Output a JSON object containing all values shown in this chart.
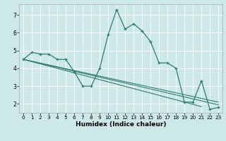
{
  "title": "",
  "xlabel": "Humidex (Indice chaleur)",
  "bg_color": "#cce8e8",
  "grid_color": "#ffffff",
  "line_color": "#2e7d6e",
  "xlim": [
    -0.5,
    23.5
  ],
  "ylim": [
    1.5,
    7.6
  ],
  "yticks": [
    2,
    3,
    4,
    5,
    6,
    7
  ],
  "xticks": [
    0,
    1,
    2,
    3,
    4,
    5,
    6,
    7,
    8,
    9,
    10,
    11,
    12,
    13,
    14,
    15,
    16,
    17,
    18,
    19,
    20,
    21,
    22,
    23
  ],
  "series": [
    [
      0,
      4.5
    ],
    [
      1,
      4.9
    ],
    [
      2,
      4.8
    ],
    [
      3,
      4.8
    ],
    [
      4,
      4.5
    ],
    [
      5,
      4.5
    ],
    [
      6,
      3.8
    ],
    [
      7,
      3.0
    ],
    [
      8,
      3.0
    ],
    [
      9,
      4.0
    ],
    [
      10,
      5.9
    ],
    [
      11,
      7.3
    ],
    [
      12,
      6.2
    ],
    [
      13,
      6.5
    ],
    [
      14,
      6.1
    ],
    [
      15,
      5.5
    ],
    [
      16,
      4.3
    ],
    [
      17,
      4.3
    ],
    [
      18,
      4.0
    ],
    [
      19,
      2.1
    ],
    [
      20,
      2.1
    ],
    [
      21,
      3.3
    ],
    [
      22,
      1.7
    ],
    [
      23,
      1.8
    ]
  ],
  "trend_lines": [
    [
      [
        0,
        4.5
      ],
      [
        23,
        2.1
      ]
    ],
    [
      [
        0,
        4.5
      ],
      [
        23,
        1.95
      ]
    ],
    [
      [
        0,
        4.5
      ],
      [
        21,
        1.85
      ]
    ]
  ]
}
